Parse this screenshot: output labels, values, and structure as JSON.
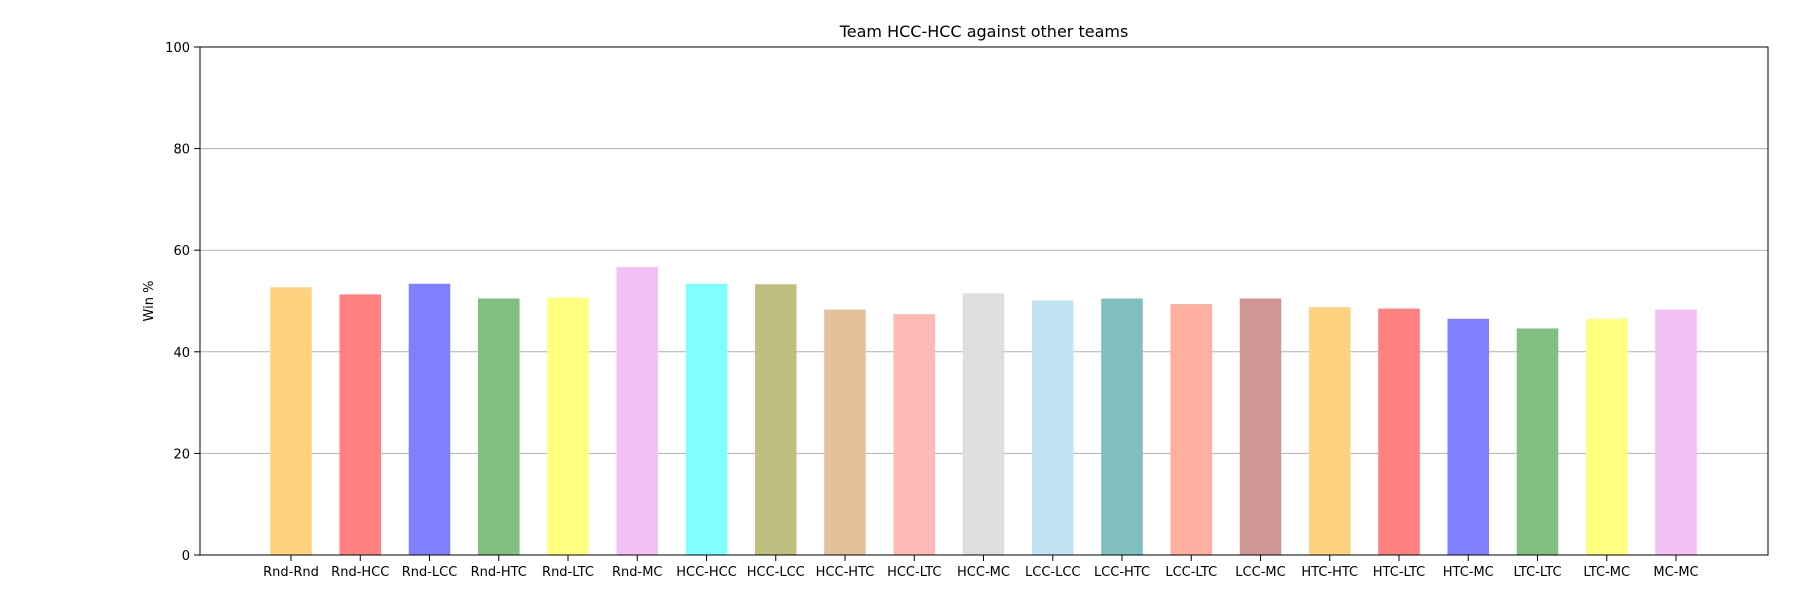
{
  "chart_data": {
    "type": "bar",
    "title": "Team HCC-HCC against other teams",
    "xlabel": "",
    "ylabel": "Win %",
    "ylim": [
      0,
      100
    ],
    "yticks": [
      0,
      20,
      40,
      60,
      80,
      100
    ],
    "grid": "y",
    "categories": [
      "Rnd-Rnd",
      "Rnd-HCC",
      "Rnd-LCC",
      "Rnd-HTC",
      "Rnd-LTC",
      "Rnd-MC",
      "HCC-HCC",
      "HCC-LCC",
      "HCC-HTC",
      "HCC-LTC",
      "HCC-MC",
      "LCC-LCC",
      "LCC-HTC",
      "LCC-LTC",
      "LCC-MC",
      "HTC-HTC",
      "HTC-LTC",
      "HTC-MC",
      "LTC-LTC",
      "LTC-MC",
      "MC-MC"
    ],
    "values": [
      52.7,
      51.3,
      53.4,
      50.5,
      50.7,
      56.7,
      53.4,
      53.3,
      48.3,
      47.4,
      51.5,
      50.1,
      50.5,
      49.4,
      50.5,
      48.8,
      48.5,
      46.5,
      44.6,
      46.5,
      48.3
    ],
    "colors": [
      "#ffd280",
      "#ff8080",
      "#8080ff",
      "#80c080",
      "#ffff80",
      "#f5c0f5",
      "#80ffff",
      "#bfbf80",
      "#e5c19b",
      "#fcbcb5",
      "#dedede",
      "#c0e4f4",
      "#80bfbf",
      "#feafa0",
      "#d09595",
      "#ffd280",
      "#ff8080",
      "#8080ff",
      "#80c080",
      "#ffff80",
      "#f5c0f5"
    ]
  }
}
